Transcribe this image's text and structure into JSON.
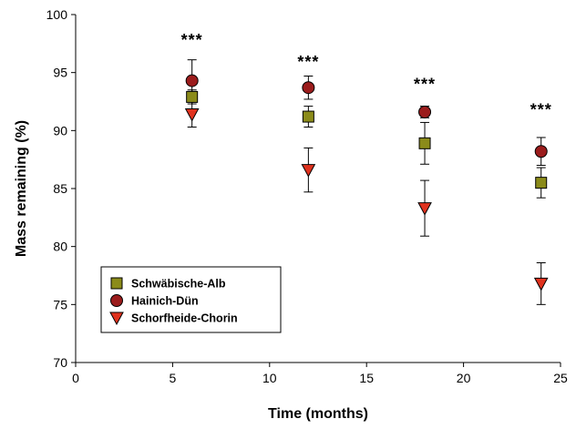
{
  "chart_data": {
    "type": "scatter",
    "title": "",
    "xlabel": "Time (months)",
    "ylabel": "Mass remaining (%)",
    "xlim": [
      0,
      25
    ],
    "ylim": [
      70,
      100
    ],
    "xticks": [
      0,
      5,
      10,
      15,
      20,
      25
    ],
    "yticks": [
      70,
      75,
      80,
      85,
      90,
      95,
      100
    ],
    "grid": false,
    "legend_position": "bottom-left",
    "series": [
      {
        "name": "Schwäbische-Alb",
        "marker": "square",
        "color": "#8b8b1a",
        "x": [
          6,
          12,
          18,
          24
        ],
        "y": [
          92.9,
          91.2,
          88.9,
          85.5
        ],
        "err": [
          0.6,
          0.9,
          1.8,
          1.3
        ]
      },
      {
        "name": "Hainich-Dün",
        "marker": "circle",
        "color": "#9b1c1c",
        "x": [
          6,
          12,
          18,
          24
        ],
        "y": [
          94.3,
          93.7,
          91.6,
          88.2
        ],
        "err": [
          1.8,
          1.0,
          0.5,
          1.2
        ]
      },
      {
        "name": "Schorfheide-Chorin",
        "marker": "triangle-down",
        "color": "#e0321e",
        "x": [
          6,
          12,
          18,
          24
        ],
        "y": [
          91.4,
          86.6,
          83.3,
          76.8
        ],
        "err": [
          1.1,
          1.9,
          2.4,
          1.8
        ]
      }
    ],
    "annotations": [
      {
        "x": 6,
        "y": 97.8,
        "text": "***"
      },
      {
        "x": 12,
        "y": 95.9,
        "text": "***"
      },
      {
        "x": 18,
        "y": 94.0,
        "text": "***"
      },
      {
        "x": 24,
        "y": 91.8,
        "text": "***"
      }
    ]
  }
}
